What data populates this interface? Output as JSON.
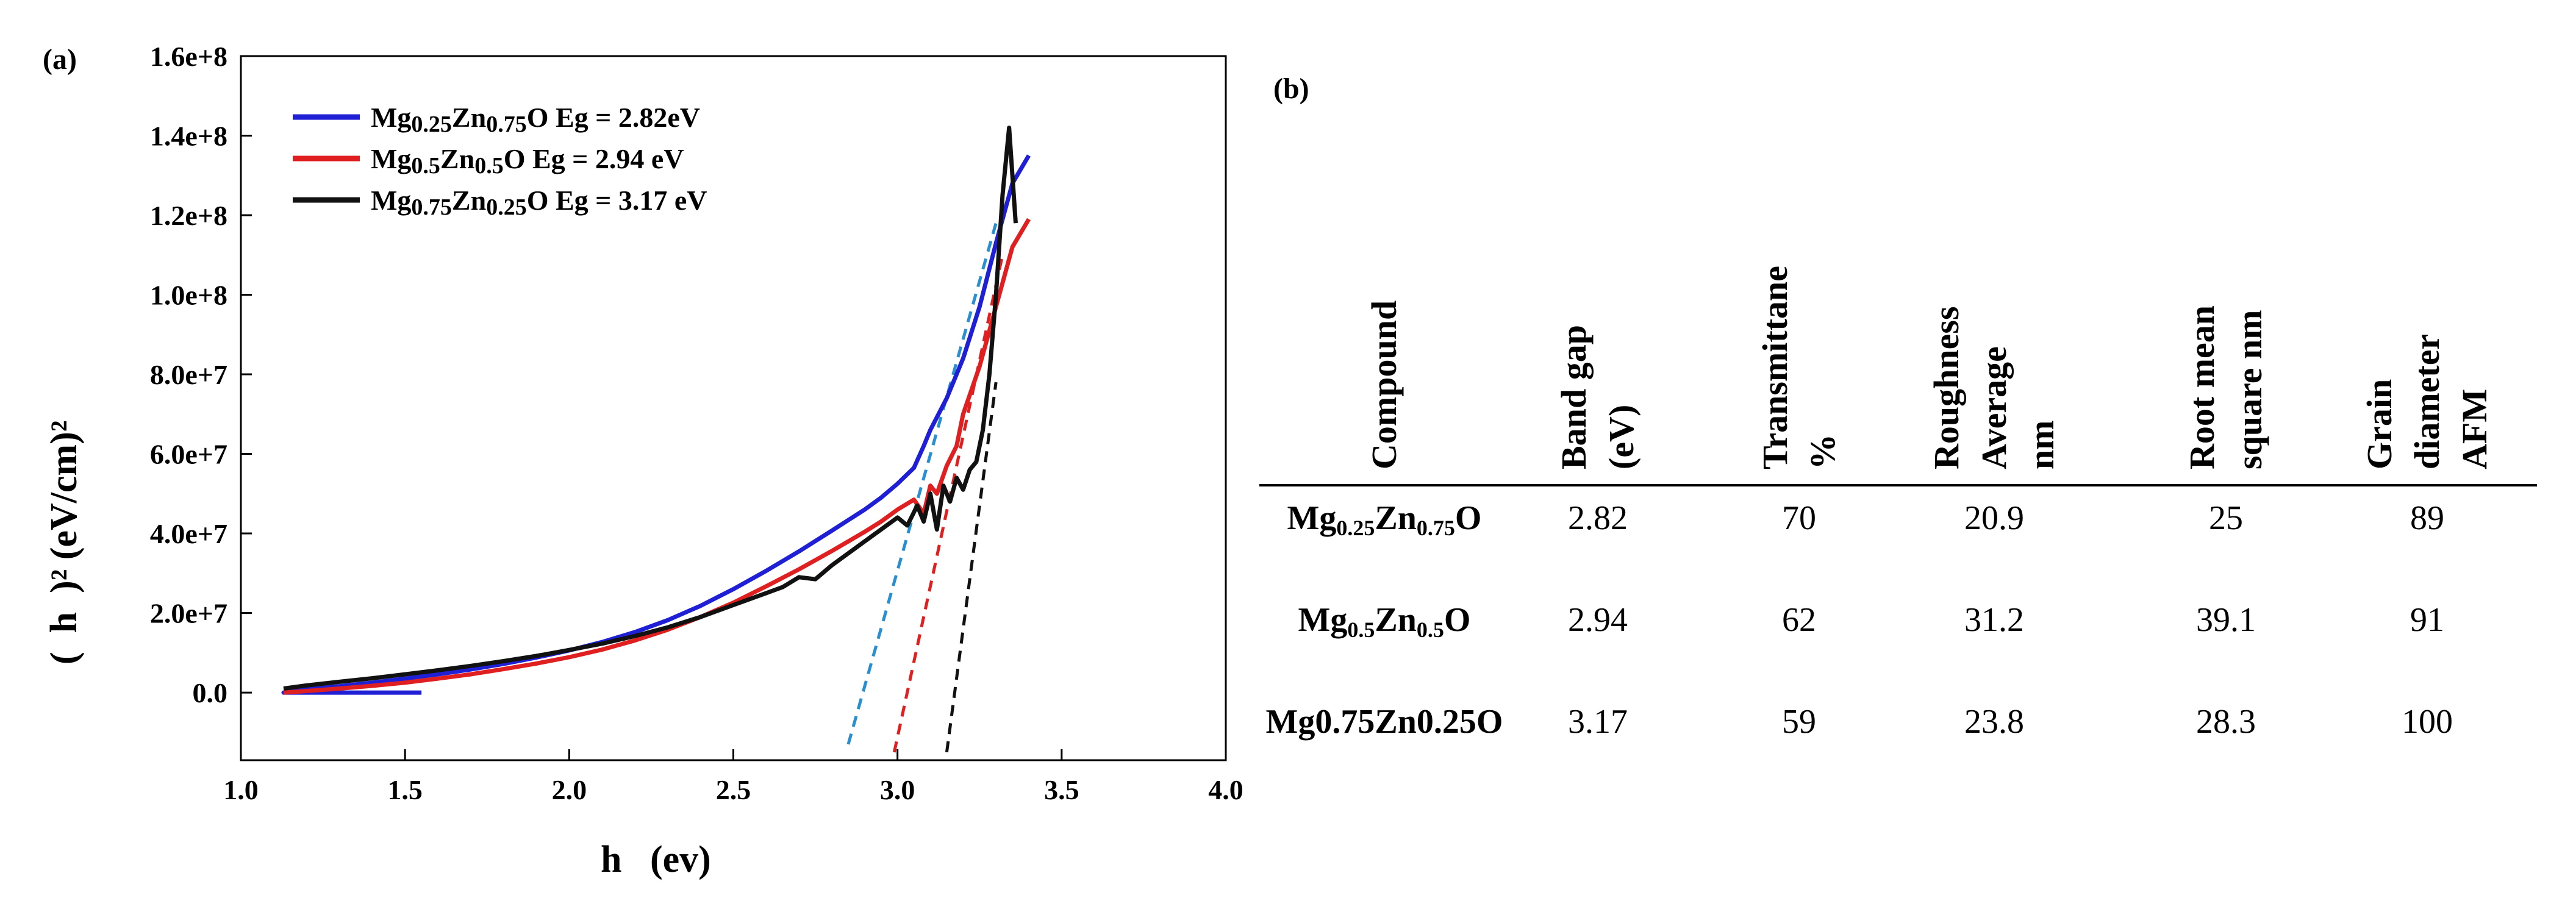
{
  "figure": {
    "panel_a_label": "(a)",
    "panel_b_label": "(b)"
  },
  "chart_data": {
    "type": "line",
    "title": "",
    "xlabel": "h   (ev)",
    "ylabel": "(  h  )² (eV/cm)²",
    "xlim": [
      1.0,
      4.0
    ],
    "ylim": [
      -17000000,
      160000000
    ],
    "xticks": [
      1.0,
      1.5,
      2.0,
      2.5,
      3.0,
      3.5,
      4.0
    ],
    "xtick_labels": [
      "1.0",
      "1.5",
      "2.0",
      "2.5",
      "3.0",
      "3.5",
      "4.0"
    ],
    "yticks": [
      0,
      20000000,
      40000000,
      60000000,
      80000000,
      100000000,
      120000000,
      140000000,
      160000000
    ],
    "ytick_labels": [
      "0.0",
      "2.0e+7",
      "4.0e+7",
      "6.0e+7",
      "8.0e+7",
      "1.0e+8",
      "1.2e+8",
      "1.4e+8",
      "1.6e+8"
    ],
    "legend_position": "top-left",
    "series": [
      {
        "name": "Mg0.25Zn0.75O Eg = 2.82eV",
        "legend": {
          "base": "Mg",
          "s1": "0.25",
          "mid": "Zn",
          "s2": "0.75",
          "tail": "O Eg = 2.82eV"
        },
        "color": "#1f1fd6",
        "x": [
          1.55,
          1.55,
          1.13,
          1.2,
          1.3,
          1.4,
          1.5,
          1.6,
          1.7,
          1.8,
          1.9,
          2.0,
          2.1,
          2.2,
          2.3,
          2.4,
          2.5,
          2.6,
          2.7,
          2.8,
          2.9,
          2.95,
          3.0,
          3.05,
          3.08,
          3.1,
          3.15,
          3.2,
          3.25,
          3.3,
          3.35,
          3.4
        ],
        "y": [
          0,
          0,
          0,
          800000,
          1600000,
          2500000,
          3500000,
          4600000,
          5800000,
          7200000,
          8800000,
          10600000,
          12700000,
          15200000,
          18200000,
          21800000,
          26000000,
          30600000,
          35500000,
          40700000,
          46000000,
          49000000,
          52500000,
          56500000,
          62000000,
          66000000,
          74000000,
          84000000,
          97000000,
          113000000,
          128000000,
          135000000
        ]
      },
      {
        "name": "Mg0.5Zn0.5O Eg = 2.94 eV",
        "legend": {
          "base": "Mg",
          "s1": "0.5",
          "mid": "Zn",
          "s2": "0.5",
          "tail": "O Eg = 2.94 eV"
        },
        "color": "#e02020",
        "x": [
          1.13,
          1.2,
          1.3,
          1.4,
          1.5,
          1.6,
          1.7,
          1.8,
          1.9,
          2.0,
          2.1,
          2.2,
          2.3,
          2.4,
          2.5,
          2.6,
          2.7,
          2.8,
          2.9,
          2.95,
          3.0,
          3.05,
          3.08,
          3.1,
          3.12,
          3.15,
          3.18,
          3.2,
          3.25,
          3.3,
          3.35,
          3.4
        ],
        "y": [
          0,
          400000,
          1000000,
          1700000,
          2500000,
          3500000,
          4600000,
          5900000,
          7300000,
          8900000,
          10800000,
          13100000,
          15800000,
          19000000,
          22600000,
          26700000,
          31000000,
          35600000,
          40400000,
          43000000,
          46000000,
          48500000,
          45000000,
          52000000,
          50000000,
          57000000,
          62000000,
          70000000,
          82000000,
          97000000,
          112000000,
          119000000
        ]
      },
      {
        "name": "Mg0.75Zn0.25O Eg = 3.17 eV",
        "legend": {
          "base": "Mg",
          "s1": "0.75",
          "mid": "Zn",
          "s2": "0.25",
          "tail": "O Eg = 3.17 eV"
        },
        "color": "#111111",
        "x": [
          1.13,
          1.2,
          1.3,
          1.4,
          1.5,
          1.6,
          1.7,
          1.8,
          1.9,
          2.0,
          2.1,
          2.2,
          2.3,
          2.4,
          2.5,
          2.6,
          2.65,
          2.7,
          2.75,
          2.8,
          2.85,
          2.9,
          2.95,
          3.0,
          3.03,
          3.06,
          3.08,
          3.1,
          3.12,
          3.14,
          3.16,
          3.18,
          3.2,
          3.22,
          3.24,
          3.26,
          3.28,
          3.3,
          3.32,
          3.34,
          3.36
        ],
        "y": [
          1000000,
          1800000,
          2700000,
          3600000,
          4600000,
          5600000,
          6700000,
          7900000,
          9200000,
          10700000,
          12300000,
          14200000,
          16400000,
          19000000,
          22000000,
          25000000,
          26500000,
          29000000,
          28500000,
          32000000,
          35000000,
          38000000,
          41000000,
          44000000,
          42000000,
          47000000,
          43000000,
          50000000,
          41000000,
          52000000,
          48000000,
          54000000,
          51000000,
          56000000,
          58000000,
          66000000,
          80000000,
          100000000,
          125000000,
          142000000,
          118000000
        ]
      }
    ],
    "tangent_lines": [
      {
        "color": "#2a8fd0",
        "x": [
          2.85,
          3.3
        ],
        "y": [
          -13000000,
          118000000
        ]
      },
      {
        "color": "#e02020",
        "x": [
          2.99,
          3.32
        ],
        "y": [
          -15000000,
          110000000
        ]
      },
      {
        "color": "#111111",
        "x": [
          3.15,
          3.3
        ],
        "y": [
          -15000000,
          78000000
        ]
      }
    ]
  },
  "table": {
    "headers": [
      [
        "Compound"
      ],
      [
        "Band gap",
        "(eV)"
      ],
      [
        "Transmittane",
        "%"
      ],
      [
        "Roughness",
        "Average",
        "nm"
      ],
      [
        "Root mean",
        "square nm"
      ],
      [
        "Grain",
        "diameter",
        "AFM"
      ]
    ],
    "rows": [
      {
        "compound": {
          "base": "Mg",
          "s1": "0.25",
          "mid": "Zn",
          "s2": "0.75",
          "tail": "O"
        },
        "values": [
          "2.82",
          "70",
          "20.9",
          "25",
          "89"
        ]
      },
      {
        "compound": {
          "base": "Mg",
          "s1": "0.5",
          "mid": "Zn",
          "s2": "0.5",
          "tail": "O"
        },
        "values": [
          "2.94",
          "62",
          "31.2",
          "39.1",
          "91"
        ]
      },
      {
        "compound": {
          "plain": "Mg0.75Zn0.25O"
        },
        "values": [
          "3.17",
          "59",
          "23.8",
          "28.3",
          "100"
        ]
      }
    ]
  }
}
